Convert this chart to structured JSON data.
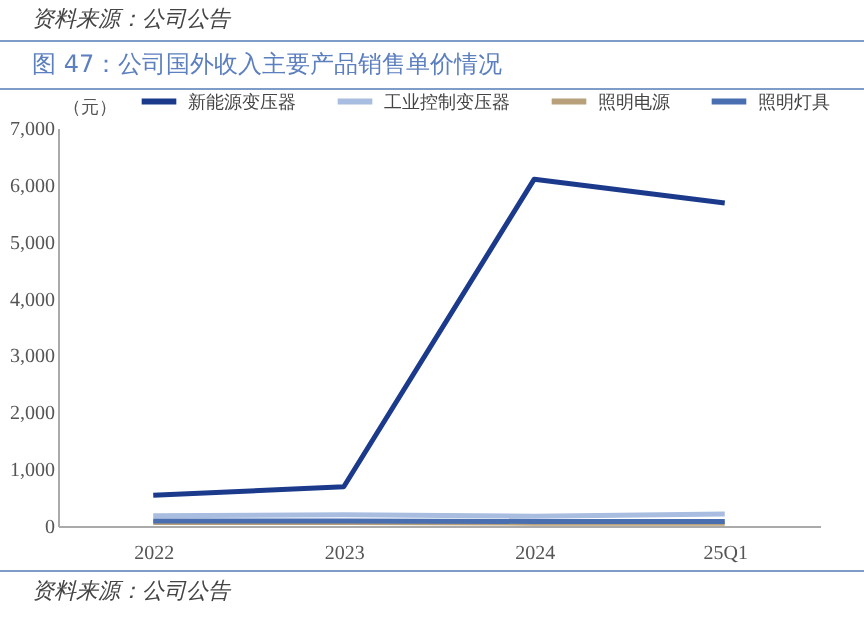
{
  "chart_data": {
    "type": "line",
    "title": "图 47：公司国外收入主要产品销售单价情况",
    "ylabel": "（元）",
    "annotations": [
      "资料来源：公司公告",
      "资料来源：公司公告"
    ],
    "categories": [
      "2022",
      "2023",
      "2024",
      "25Q1"
    ],
    "series": [
      {
        "name": "新能源变压器",
        "color": "#1b3a8c",
        "values": [
          540,
          690,
          6100,
          5680
        ]
      },
      {
        "name": "工业控制变压器",
        "color": "#a9bde0",
        "values": [
          180,
          200,
          170,
          210
        ]
      },
      {
        "name": "照明电源",
        "color": "#b8a07a",
        "values": [
          60,
          60,
          50,
          50
        ]
      },
      {
        "name": "照明灯具",
        "color": "#4a6fb0",
        "values": [
          90,
          90,
          80,
          80
        ]
      }
    ],
    "ylim": [
      0,
      7000
    ],
    "yticks": [
      0,
      {
        "value": 1000,
        "label": "1,000"
      },
      {
        "value": 2000,
        "label": "2,000"
      },
      {
        "value": 3000,
        "label": "3,000"
      },
      {
        "value": 4000,
        "label": "4,000"
      },
      {
        "value": 5000,
        "label": "5,000"
      },
      {
        "value": 6000,
        "label": "6,000"
      },
      {
        "value": 7000,
        "label": "7,000"
      }
    ],
    "grid": false,
    "legend": "top",
    "marker": "none",
    "line_style": "solid"
  }
}
